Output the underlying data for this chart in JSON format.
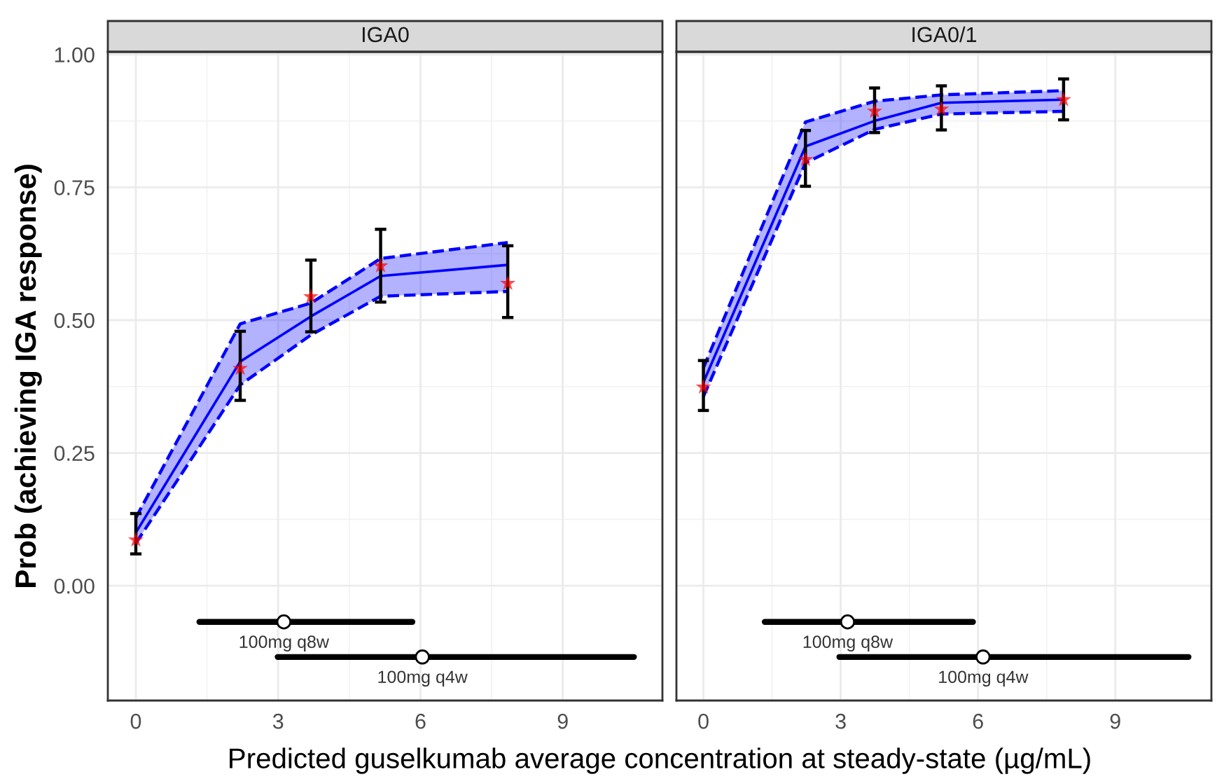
{
  "chart_data": [
    {
      "type": "line",
      "title": "IGA0",
      "ylabel": "Prob (achieving IGA response)",
      "xlabel": "Predicted guselkumab average concentration at steady-state (µg/mL)",
      "xlim": [
        -0.59,
        11.1
      ],
      "xticks": [
        0,
        3,
        6,
        9
      ],
      "ylim": [
        -0.216,
        1.005
      ],
      "yticks": [
        {
          "value": 0,
          "label": "0.00"
        },
        {
          "value": 0.25,
          "label": "0.25"
        },
        {
          "value": 0.5,
          "label": "0.50"
        },
        {
          "value": 0.75,
          "label": "0.75"
        },
        {
          "value": 1.0,
          "label": "1.00"
        }
      ],
      "grid": true,
      "legend": false,
      "series": [
        {
          "color": "#0000ff",
          "x": [
            0,
            2.2,
            3.69,
            5.16,
            7.84
          ],
          "values": [
            0.1,
            0.422,
            0.507,
            0.583,
            0.604
          ],
          "lower": [
            0.08,
            0.378,
            0.472,
            0.545,
            0.554
          ],
          "upper": [
            0.128,
            0.493,
            0.532,
            0.616,
            0.646
          ]
        },
        {
          "color": "#0000ff",
          "line_style": "dashed",
          "x": [
            0,
            2.2,
            3.69,
            5.16,
            7.84
          ],
          "values": [
            0.08,
            0.378,
            0.472,
            0.545,
            0.554
          ]
        },
        {
          "color": "#0000ff",
          "line_style": "dashed",
          "x": [
            0,
            2.2,
            3.69,
            5.16,
            7.84
          ],
          "values": [
            0.128,
            0.493,
            0.532,
            0.616,
            0.646
          ]
        },
        {
          "type": "scatter",
          "color": "#ff0000",
          "marker": "star",
          "x": [
            0,
            2.2,
            3.69,
            5.16,
            7.84
          ],
          "values": [
            0.086,
            0.409,
            0.544,
            0.602,
            0.569
          ],
          "errors": [
            [
              0.06,
              0.136
            ],
            [
              0.349,
              0.479
            ],
            [
              0.478,
              0.613
            ],
            [
              0.534,
              0.671
            ],
            [
              0.505,
              0.64
            ]
          ]
        },
        {
          "type": "line",
          "color": "#000000",
          "x": [
            1.34,
            5.83
          ],
          "values": [
            -0.068,
            -0.068
          ]
        },
        {
          "type": "scatter",
          "color": "#ffffff",
          "marker": "circle",
          "x": [
            3.12
          ],
          "values": [
            -0.068
          ]
        },
        {
          "type": "line",
          "color": "#000000",
          "x": [
            2.99,
            10.5
          ],
          "values": [
            -0.134,
            -0.134
          ]
        },
        {
          "type": "scatter",
          "color": "#ffffff",
          "marker": "circle",
          "x": [
            6.04
          ],
          "values": [
            -0.134
          ]
        }
      ],
      "annotations": [
        {
          "text": "100mg q8w",
          "x": 3.12,
          "y": -0.068
        },
        {
          "text": "100mg q4w",
          "x": 6.04,
          "y": -0.134
        }
      ]
    },
    {
      "type": "line",
      "title": "IGA0/1",
      "tick_labels": "x",
      "xlim": [
        -0.59,
        11.1
      ],
      "xticks": [
        0,
        3,
        6,
        9
      ],
      "ylim": [
        -0.216,
        1.005
      ],
      "yticks": [
        {
          "value": 0,
          "label": null
        },
        {
          "value": 0.25,
          "label": null
        },
        {
          "value": 0.5,
          "label": null
        },
        {
          "value": 0.75,
          "label": null
        },
        {
          "value": 1.0,
          "label": null
        }
      ],
      "grid": true,
      "legend": false,
      "series": [
        {
          "color": "#0000ff",
          "x": [
            0,
            2.23,
            3.74,
            5.2,
            7.87
          ],
          "values": [
            0.383,
            0.827,
            0.875,
            0.909,
            0.915
          ],
          "lower": [
            0.356,
            0.796,
            0.859,
            0.888,
            0.893
          ],
          "upper": [
            0.41,
            0.873,
            0.912,
            0.924,
            0.932
          ]
        },
        {
          "color": "#0000ff",
          "line_style": "dashed",
          "x": [
            0,
            2.23,
            3.74,
            5.2,
            7.87
          ],
          "values": [
            0.356,
            0.796,
            0.859,
            0.888,
            0.893
          ]
        },
        {
          "color": "#0000ff",
          "line_style": "dashed",
          "x": [
            0,
            2.23,
            3.74,
            5.2,
            7.87
          ],
          "values": [
            0.41,
            0.873,
            0.912,
            0.924,
            0.932
          ]
        },
        {
          "type": "scatter",
          "color": "#ff0000",
          "marker": "star",
          "x": [
            0,
            2.23,
            3.74,
            5.2,
            7.87
          ],
          "values": [
            0.374,
            0.802,
            0.893,
            0.897,
            0.915
          ],
          "errors": [
            [
              0.33,
              0.424
            ],
            [
              0.752,
              0.857
            ],
            [
              0.853,
              0.937
            ],
            [
              0.858,
              0.941
            ],
            [
              0.877,
              0.954
            ]
          ]
        },
        {
          "type": "line",
          "color": "#000000",
          "x": [
            1.34,
            5.89
          ],
          "values": [
            -0.068,
            -0.068
          ]
        },
        {
          "type": "scatter",
          "color": "#ffffff",
          "marker": "circle",
          "x": [
            3.15
          ],
          "values": [
            -0.068
          ]
        },
        {
          "type": "line",
          "color": "#000000",
          "x": [
            2.97,
            10.6
          ],
          "values": [
            -0.134,
            -0.134
          ]
        },
        {
          "type": "scatter",
          "color": "#ffffff",
          "marker": "circle",
          "x": [
            6.11
          ],
          "values": [
            -0.134
          ]
        }
      ],
      "annotations": [
        {
          "text": "100mg q8w",
          "x": 3.15,
          "y": -0.068
        },
        {
          "text": "100mg q4w",
          "x": 6.11,
          "y": -0.134
        }
      ]
    }
  ]
}
